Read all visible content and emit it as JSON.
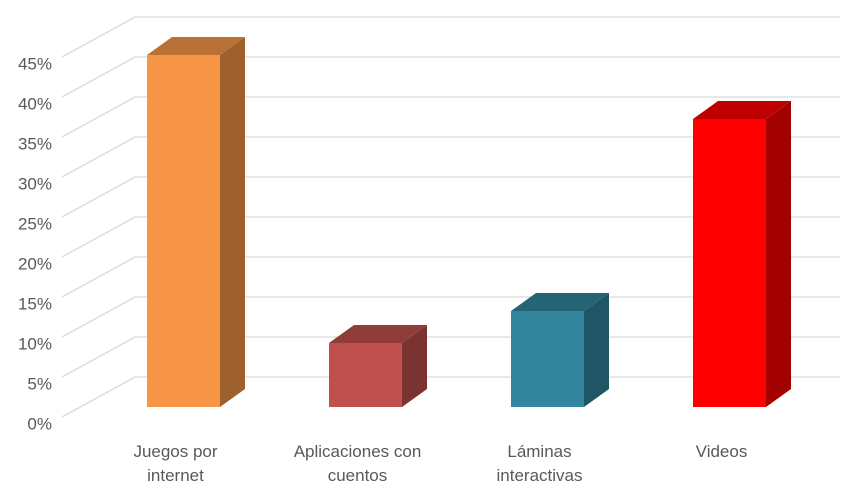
{
  "chart_data": {
    "type": "bar",
    "categories": [
      "Juegos por internet",
      "Aplicaciones con cuentos",
      "Láminas interactivas",
      "Videos"
    ],
    "values": [
      44,
      8,
      12,
      36
    ],
    "colors": [
      "#F79646",
      "#C0504D",
      "#31859C",
      "#FF0000"
    ],
    "ylim": [
      0,
      45
    ],
    "yticks": [
      {
        "value": 0,
        "label": "0%"
      },
      {
        "value": 5,
        "label": "5%"
      },
      {
        "value": 10,
        "label": "10%"
      },
      {
        "value": 15,
        "label": "15%"
      },
      {
        "value": 20,
        "label": "20%"
      },
      {
        "value": 25,
        "label": "25%"
      },
      {
        "value": 30,
        "label": "30%"
      },
      {
        "value": 35,
        "label": "35%"
      },
      {
        "value": 40,
        "label": "40%"
      },
      {
        "value": 45,
        "label": "45%"
      }
    ],
    "grid": true
  }
}
